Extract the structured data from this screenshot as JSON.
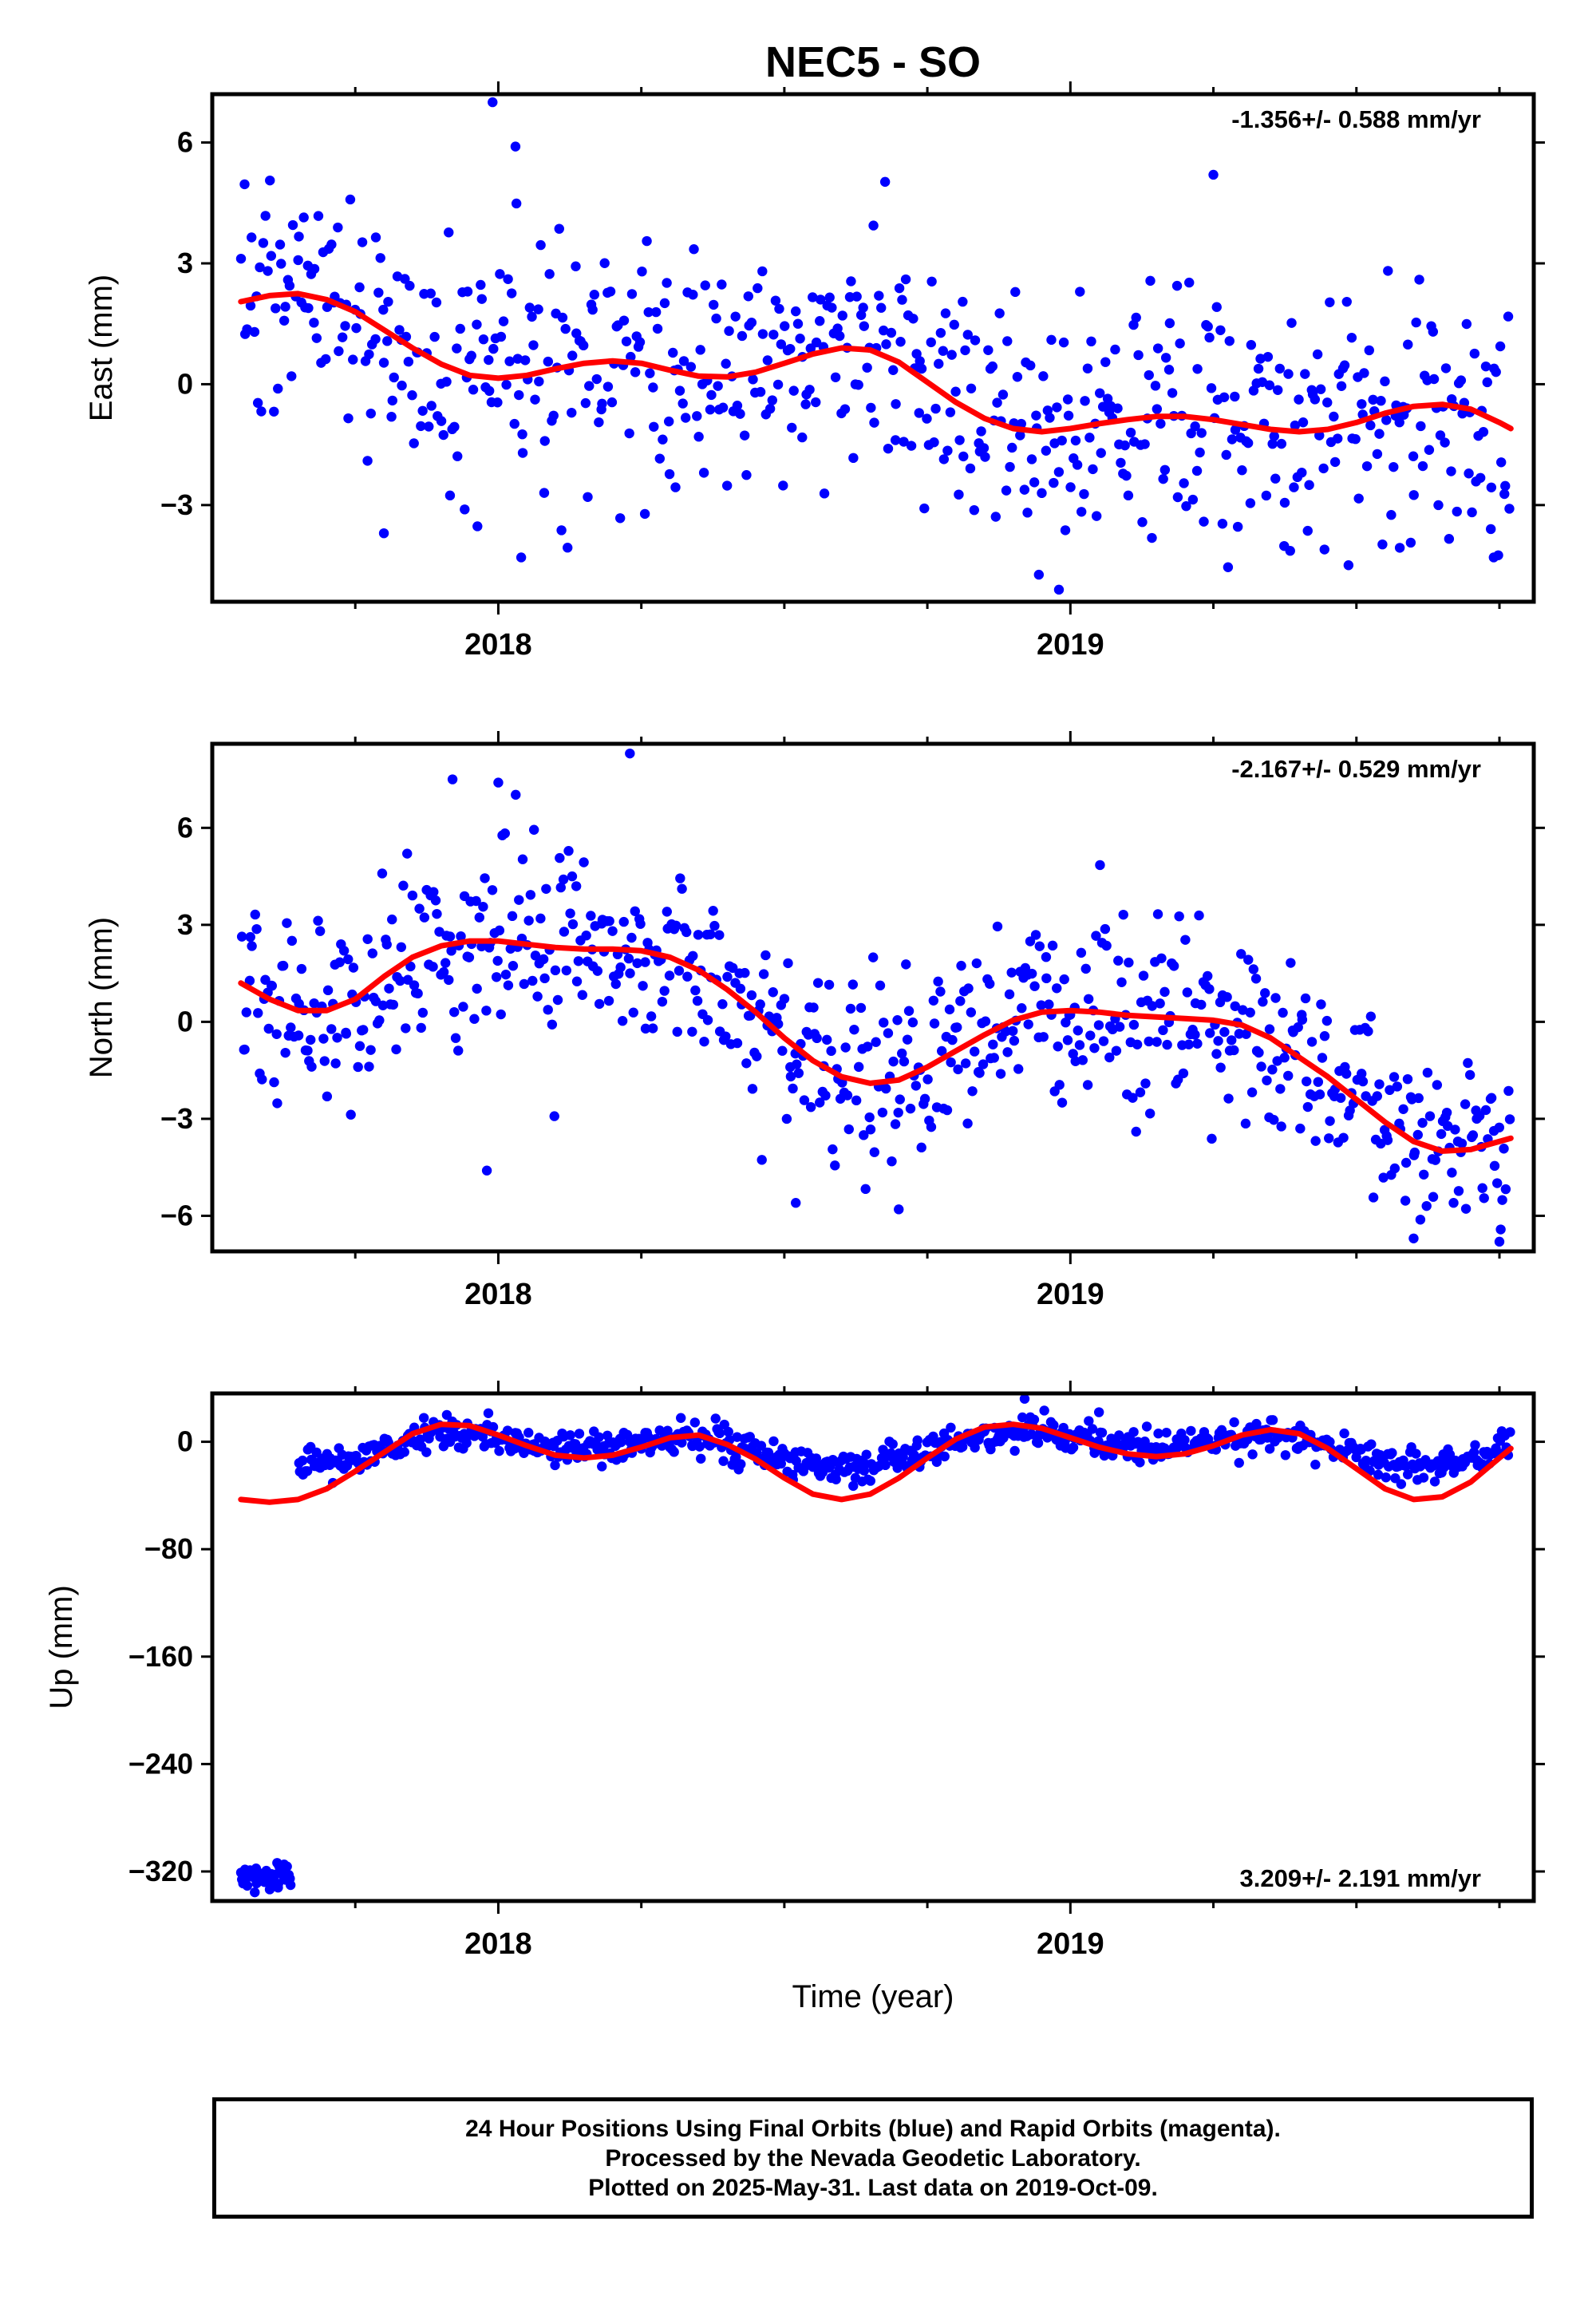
{
  "title": "NEC5 - SO",
  "xlabel": "Time (year)",
  "caption": {
    "line1": "24 Hour Positions Using Final Orbits (blue) and Rapid Orbits (magenta).",
    "line2": "Processed by the Nevada Geodetic Laboratory.",
    "line3": "Plotted on 2025-May-31. Last data on 2019-Oct-09."
  },
  "colors": {
    "points": "#0000ff",
    "model": "#ff0000",
    "frame": "#000000"
  },
  "chart_data": [
    {
      "type": "scatter",
      "ylabel": "East (mm)",
      "rate_text": "-1.356+/- 0.588 mm/yr",
      "rate_position": "top-right",
      "xlim": [
        2017.5,
        2019.81
      ],
      "ylim": [
        -5.4,
        7.2
      ],
      "yticks": [
        -3,
        0,
        3,
        6
      ],
      "ytick_labels": [
        "−3",
        "0",
        "3",
        "6"
      ],
      "xticks": [
        2018,
        2019
      ],
      "x_minor_ticks": [
        2017.75,
        2018.25,
        2018.5,
        2018.75,
        2019.25,
        2019.5,
        2019.75
      ],
      "grid": false,
      "points_band": {
        "x_start": 2017.55,
        "x_end": 2019.77,
        "noise_sd": 1.55,
        "n": 640
      },
      "outliers": [
        [
          2017.99,
          7.0
        ],
        [
          2018.03,
          5.9
        ],
        [
          2019.25,
          5.2
        ],
        [
          2017.8,
          -3.7
        ],
        [
          2018.04,
          -4.3
        ],
        [
          2018.98,
          -5.1
        ],
        [
          2019.74,
          -4.3
        ]
      ],
      "model_x": [
        2017.55,
        2017.6,
        2017.65,
        2017.7,
        2017.75,
        2017.8,
        2017.85,
        2017.9,
        2017.95,
        2018.0,
        2018.05,
        2018.1,
        2018.15,
        2018.2,
        2018.25,
        2018.3,
        2018.35,
        2018.4,
        2018.45,
        2018.5,
        2018.55,
        2018.6,
        2018.65,
        2018.7,
        2018.75,
        2018.8,
        2018.85,
        2018.9,
        2018.95,
        2019.0,
        2019.05,
        2019.1,
        2019.15,
        2019.2,
        2019.25,
        2019.3,
        2019.35,
        2019.4,
        2019.45,
        2019.5,
        2019.55,
        2019.6,
        2019.65,
        2019.7,
        2019.75,
        2019.77
      ],
      "model_y": [
        2.05,
        2.2,
        2.25,
        2.1,
        1.8,
        1.35,
        0.9,
        0.5,
        0.22,
        0.15,
        0.22,
        0.38,
        0.52,
        0.58,
        0.52,
        0.35,
        0.2,
        0.18,
        0.3,
        0.52,
        0.75,
        0.9,
        0.85,
        0.55,
        0.05,
        -0.45,
        -0.85,
        -1.1,
        -1.18,
        -1.1,
        -0.98,
        -0.88,
        -0.8,
        -0.8,
        -0.88,
        -1.0,
        -1.12,
        -1.18,
        -1.12,
        -0.95,
        -0.72,
        -0.55,
        -0.5,
        -0.62,
        -0.95,
        -1.1
      ]
    },
    {
      "type": "scatter",
      "ylabel": "North (mm)",
      "rate_text": "-2.167+/- 0.529 mm/yr",
      "rate_position": "top-right",
      "xlim": [
        2017.5,
        2019.81
      ],
      "ylim": [
        -7.1,
        8.6
      ],
      "yticks": [
        -6,
        -3,
        0,
        3,
        6
      ],
      "ytick_labels": [
        "−6",
        "−3",
        "0",
        "3",
        "6"
      ],
      "xticks": [
        2018,
        2019
      ],
      "x_minor_ticks": [
        2017.75,
        2018.25,
        2018.5,
        2018.75,
        2019.25,
        2019.5,
        2019.75
      ],
      "grid": false,
      "points_band": {
        "x_start": 2017.55,
        "x_end": 2019.77,
        "noise_sd": 1.45,
        "n": 700
      },
      "outliers": [
        [
          2018.23,
          8.3
        ],
        [
          2017.92,
          7.5
        ],
        [
          2018.0,
          7.4
        ],
        [
          2017.98,
          -4.6
        ],
        [
          2018.52,
          -5.6
        ],
        [
          2018.7,
          -5.8
        ],
        [
          2019.6,
          -6.7
        ],
        [
          2019.75,
          -6.8
        ]
      ],
      "model_x": [
        2017.55,
        2017.6,
        2017.65,
        2017.7,
        2017.75,
        2017.8,
        2017.85,
        2017.9,
        2017.95,
        2018.0,
        2018.05,
        2018.1,
        2018.15,
        2018.2,
        2018.25,
        2018.3,
        2018.35,
        2018.4,
        2018.45,
        2018.5,
        2018.55,
        2018.6,
        2018.65,
        2018.7,
        2018.75,
        2018.8,
        2018.85,
        2018.9,
        2018.95,
        2019.0,
        2019.05,
        2019.1,
        2019.15,
        2019.2,
        2019.25,
        2019.3,
        2019.35,
        2019.4,
        2019.45,
        2019.5,
        2019.55,
        2019.6,
        2019.65,
        2019.7,
        2019.75,
        2019.77
      ],
      "model_y": [
        1.2,
        0.7,
        0.35,
        0.35,
        0.7,
        1.4,
        2.0,
        2.35,
        2.5,
        2.5,
        2.4,
        2.3,
        2.25,
        2.25,
        2.2,
        2.0,
        1.6,
        1.0,
        0.3,
        -0.5,
        -1.2,
        -1.7,
        -1.9,
        -1.8,
        -1.4,
        -0.9,
        -0.4,
        0.05,
        0.3,
        0.35,
        0.3,
        0.2,
        0.15,
        0.1,
        0.05,
        -0.1,
        -0.5,
        -1.1,
        -1.7,
        -2.4,
        -3.1,
        -3.7,
        -4.0,
        -3.95,
        -3.7,
        -3.6
      ]
    },
    {
      "type": "scatter",
      "ylabel": "Up (mm)",
      "rate_text": "3.209+/- 2.191 mm/yr",
      "rate_position": "bottom-right",
      "xlim": [
        2017.5,
        2019.81
      ],
      "ylim": [
        -342,
        36
      ],
      "yticks": [
        -320,
        -240,
        -160,
        -80,
        0
      ],
      "ytick_labels": [
        "−320",
        "−240",
        "−160",
        "−80",
        "0"
      ],
      "xticks": [
        2018,
        2019
      ],
      "x_minor_ticks": [
        2017.75,
        2018.25,
        2018.5,
        2018.75,
        2019.25,
        2019.5,
        2019.75
      ],
      "grid": false,
      "points_band": {
        "x_start": 2017.65,
        "x_end": 2019.77,
        "noise_sd": 6.0,
        "n": 760
      },
      "cluster": {
        "x_start": 2017.55,
        "x_end": 2017.64,
        "y_center": -324,
        "spread": 4,
        "n": 45
      },
      "outliers": [
        [
          2018.92,
          32
        ],
        [
          2017.91,
          20
        ],
        [
          2019.05,
          22
        ]
      ],
      "model_x": [
        2017.55,
        2017.6,
        2017.65,
        2017.7,
        2017.75,
        2017.8,
        2017.85,
        2017.9,
        2017.95,
        2018.0,
        2018.05,
        2018.1,
        2018.15,
        2018.2,
        2018.25,
        2018.3,
        2018.35,
        2018.4,
        2018.45,
        2018.5,
        2018.55,
        2018.6,
        2018.65,
        2018.7,
        2018.75,
        2018.8,
        2018.85,
        2018.9,
        2018.95,
        2019.0,
        2019.05,
        2019.1,
        2019.15,
        2019.2,
        2019.25,
        2019.3,
        2019.35,
        2019.4,
        2019.45,
        2019.5,
        2019.55,
        2019.6,
        2019.65,
        2019.7,
        2019.75,
        2019.77
      ],
      "model_y": [
        -43,
        -45,
        -43,
        -35,
        -22,
        -8,
        6,
        13,
        12,
        5,
        -3,
        -10,
        -12,
        -10,
        -4,
        3,
        5,
        -2,
        -13,
        -27,
        -39,
        -43,
        -39,
        -27,
        -12,
        2,
        11,
        13,
        10,
        3,
        -4,
        -9,
        -11,
        -9,
        -3,
        5,
        9,
        6,
        -5,
        -20,
        -35,
        -43,
        -41,
        -30,
        -12,
        -5
      ]
    }
  ]
}
